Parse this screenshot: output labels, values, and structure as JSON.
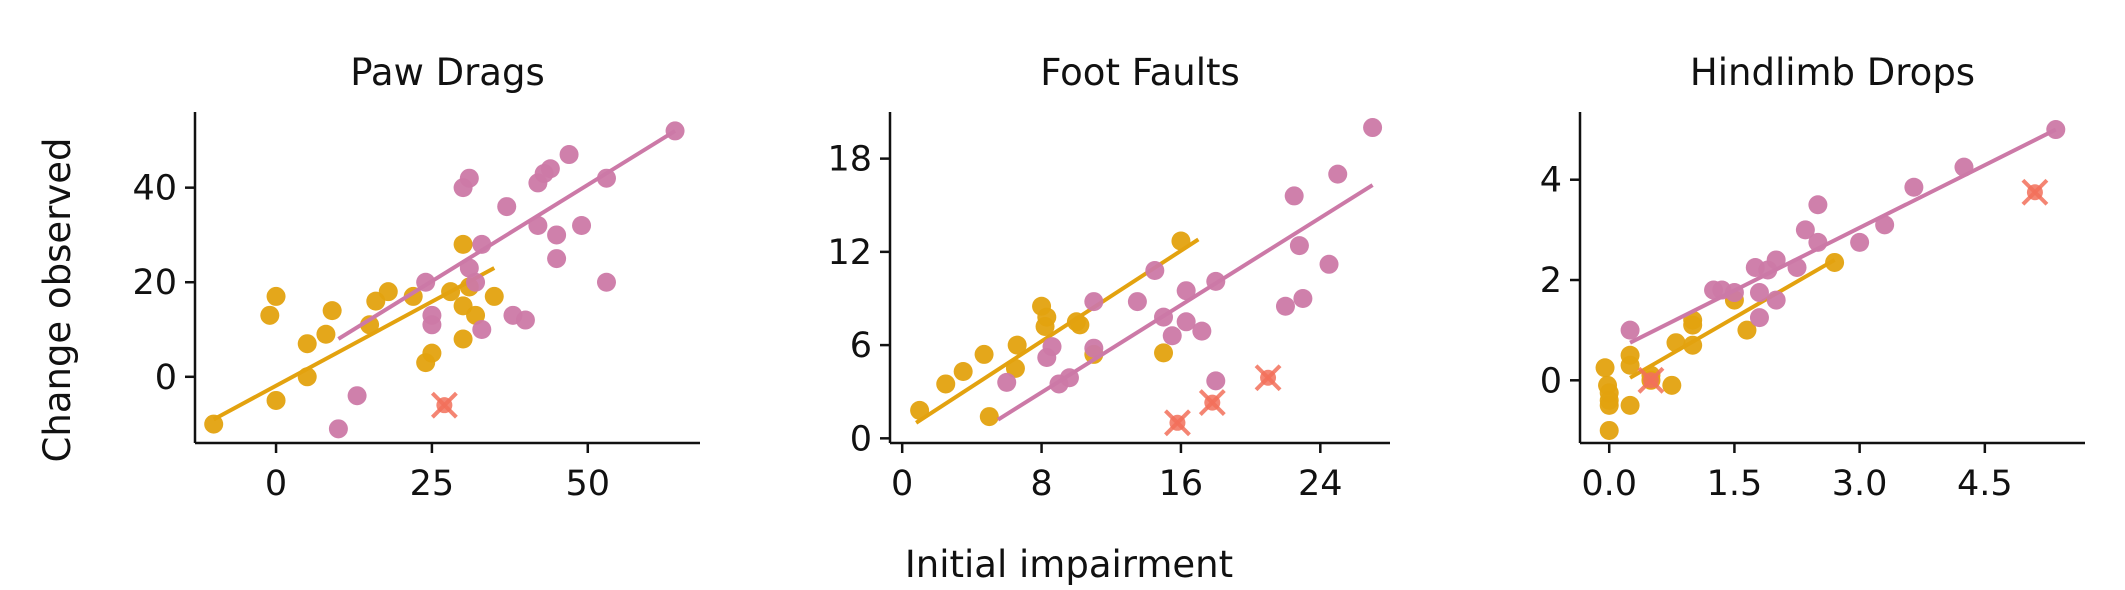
{
  "figure": {
    "xlabel": "Initial impairment",
    "ylabel": "Change observed"
  },
  "colors": {
    "orange": "#E3A20F",
    "pink": "#CC79A7",
    "outlier": "#F2705A"
  },
  "chart_data": [
    {
      "type": "scatter",
      "title": "Paw Drags",
      "xlim": [
        -13,
        68
      ],
      "ylim": [
        -14,
        56
      ],
      "xticks": [
        0,
        25,
        50
      ],
      "yticks": [
        0,
        20,
        40
      ],
      "xtick_labels": [
        "0",
        "25",
        "50"
      ],
      "ytick_labels": [
        "0",
        "20",
        "40"
      ],
      "series": [
        {
          "color": "orange",
          "points": [
            [
              -10,
              -10
            ],
            [
              -1,
              13
            ],
            [
              0,
              17
            ],
            [
              0,
              -5
            ],
            [
              5,
              7
            ],
            [
              5,
              0
            ],
            [
              8,
              9
            ],
            [
              9,
              14
            ],
            [
              15,
              11
            ],
            [
              16,
              16
            ],
            [
              18,
              18
            ],
            [
              22,
              17
            ],
            [
              24,
              3
            ],
            [
              25,
              5
            ],
            [
              28,
              18
            ],
            [
              30,
              28
            ],
            [
              30,
              15
            ],
            [
              30,
              8
            ],
            [
              31,
              19
            ],
            [
              32,
              13
            ],
            [
              35,
              17
            ]
          ],
          "fit": [
            [
              -10,
              -9
            ],
            [
              35,
              23
            ]
          ]
        },
        {
          "color": "pink",
          "points": [
            [
              10,
              -11
            ],
            [
              13,
              -4
            ],
            [
              24,
              20
            ],
            [
              25,
              13
            ],
            [
              25,
              11
            ],
            [
              30,
              40
            ],
            [
              31,
              42
            ],
            [
              31,
              23
            ],
            [
              32,
              20
            ],
            [
              33,
              28
            ],
            [
              33,
              10
            ],
            [
              37,
              36
            ],
            [
              38,
              13
            ],
            [
              40,
              12
            ],
            [
              42,
              41
            ],
            [
              42,
              32
            ],
            [
              43,
              43
            ],
            [
              44,
              44
            ],
            [
              45,
              30
            ],
            [
              45,
              25
            ],
            [
              47,
              47
            ],
            [
              49,
              32
            ],
            [
              53,
              42
            ],
            [
              53,
              20
            ],
            [
              64,
              52
            ]
          ],
          "fit": [
            [
              10,
              8
            ],
            [
              64,
              52
            ]
          ]
        }
      ],
      "outliers": [
        [
          27,
          -6
        ]
      ]
    },
    {
      "type": "scatter",
      "title": "Foot Faults",
      "xlim": [
        -0.7,
        28
      ],
      "ylim": [
        -0.3,
        21
      ],
      "xticks": [
        0,
        8,
        16,
        24
      ],
      "yticks": [
        0,
        6,
        12,
        18
      ],
      "xtick_labels": [
        "0",
        "8",
        "16",
        "24"
      ],
      "ytick_labels": [
        "0",
        "6",
        "12",
        "18"
      ],
      "series": [
        {
          "color": "orange",
          "points": [
            [
              1,
              1.8
            ],
            [
              2.5,
              3.5
            ],
            [
              3.5,
              4.3
            ],
            [
              4.7,
              5.4
            ],
            [
              5,
              1.4
            ],
            [
              6.5,
              4.5
            ],
            [
              6.6,
              6
            ],
            [
              8,
              8.5
            ],
            [
              8.2,
              7.2
            ],
            [
              8.3,
              7.8
            ],
            [
              10,
              7.5
            ],
            [
              10.2,
              7.3
            ],
            [
              11,
              5.4
            ],
            [
              15,
              5.5
            ],
            [
              16,
              12.7
            ]
          ],
          "fit": [
            [
              0.8,
              1
            ],
            [
              17,
              12.8
            ]
          ]
        },
        {
          "color": "pink",
          "points": [
            [
              6,
              3.6
            ],
            [
              8.3,
              5.2
            ],
            [
              8.6,
              5.9
            ],
            [
              9,
              3.5
            ],
            [
              9.6,
              3.9
            ],
            [
              11,
              8.8
            ],
            [
              11,
              5.8
            ],
            [
              13.5,
              8.8
            ],
            [
              14.5,
              10.8
            ],
            [
              15,
              7.8
            ],
            [
              15.5,
              6.6
            ],
            [
              16.3,
              9.5
            ],
            [
              16.3,
              7.5
            ],
            [
              17.2,
              6.9
            ],
            [
              18,
              10.1
            ],
            [
              18,
              3.7
            ],
            [
              22,
              8.5
            ],
            [
              22.5,
              15.6
            ],
            [
              22.8,
              12.4
            ],
            [
              23,
              9
            ],
            [
              24.5,
              11.2
            ],
            [
              25,
              17
            ],
            [
              27,
              20
            ]
          ],
          "fit": [
            [
              5.5,
              1.2
            ],
            [
              27,
              16.3
            ]
          ]
        }
      ],
      "outliers": [
        [
          15.8,
          1
        ],
        [
          17.8,
          2.3
        ],
        [
          21,
          3.9
        ]
      ]
    },
    {
      "type": "scatter",
      "title": "Hindlimb Drops",
      "xlim": [
        -0.35,
        5.7
      ],
      "ylim": [
        -1.25,
        5.35
      ],
      "xticks": [
        0,
        1.5,
        3,
        4.5
      ],
      "yticks": [
        0,
        2,
        4
      ],
      "xtick_labels": [
        "0.0",
        "1.5",
        "3.0",
        "4.5"
      ],
      "ytick_labels": [
        "0",
        "2",
        "4"
      ],
      "series": [
        {
          "color": "orange",
          "points": [
            [
              -0.05,
              0.25
            ],
            [
              -0.02,
              -0.1
            ],
            [
              0,
              -0.4
            ],
            [
              0,
              -0.5
            ],
            [
              0,
              -1
            ],
            [
              0,
              -0.25
            ],
            [
              0.25,
              0.5
            ],
            [
              0.25,
              0.3
            ],
            [
              0.25,
              -0.5
            ],
            [
              0.5,
              0.1
            ],
            [
              0.5,
              0
            ],
            [
              0.75,
              -0.1
            ],
            [
              0.8,
              0.75
            ],
            [
              1,
              1.1
            ],
            [
              1,
              0.7
            ],
            [
              1,
              1.2
            ],
            [
              1.5,
              1.6
            ],
            [
              1.65,
              1
            ],
            [
              2.7,
              2.35
            ]
          ],
          "fit": [
            [
              0.25,
              0.05
            ],
            [
              2.7,
              2.4
            ]
          ]
        },
        {
          "color": "pink",
          "points": [
            [
              0.25,
              1
            ],
            [
              1.25,
              1.8
            ],
            [
              1.35,
              1.8
            ],
            [
              1.5,
              1.75
            ],
            [
              1.75,
              2.25
            ],
            [
              1.8,
              1.75
            ],
            [
              1.8,
              1.25
            ],
            [
              1.9,
              2.2
            ],
            [
              2,
              2.4
            ],
            [
              2,
              1.6
            ],
            [
              2.25,
              2.25
            ],
            [
              2.35,
              3
            ],
            [
              2.5,
              3.5
            ],
            [
              2.5,
              2.75
            ],
            [
              3,
              2.75
            ],
            [
              3.3,
              3.1
            ],
            [
              3.65,
              3.85
            ],
            [
              4.25,
              4.25
            ],
            [
              5.35,
              5
            ]
          ],
          "fit": [
            [
              0.25,
              0.75
            ],
            [
              5.35,
              5
            ]
          ]
        }
      ],
      "outliers": [
        [
          0.5,
          0
        ],
        [
          5.1,
          3.75
        ]
      ]
    }
  ]
}
